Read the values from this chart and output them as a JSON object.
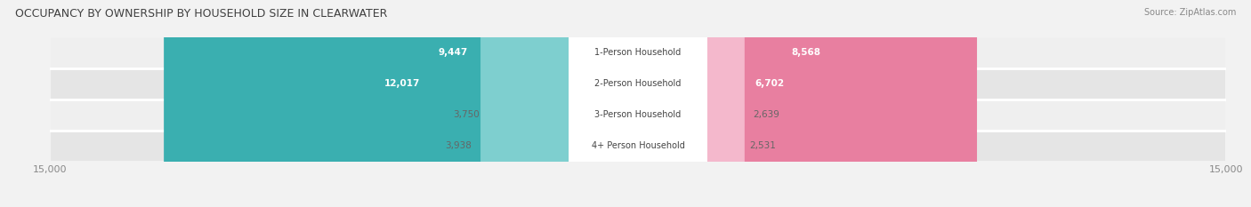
{
  "title": "OCCUPANCY BY OWNERSHIP BY HOUSEHOLD SIZE IN CLEARWATER",
  "source": "Source: ZipAtlas.com",
  "categories": [
    "1-Person Household",
    "2-Person Household",
    "3-Person Household",
    "4+ Person Household"
  ],
  "owner_values": [
    9447,
    12017,
    3750,
    3938
  ],
  "renter_values": [
    8568,
    6702,
    2639,
    2531
  ],
  "max_val": 15000,
  "owner_color_large": "#3AAFB0",
  "owner_color_small": "#7ECFCF",
  "renter_color_large": "#E87FA0",
  "renter_color_small": "#F4B8CC",
  "row_bg_odd": "#EFEFEF",
  "row_bg_even": "#E5E5E5",
  "label_bg_color": "#FFFFFF",
  "title_color": "#404040",
  "source_color": "#888888",
  "value_inside_color": "#FFFFFF",
  "value_outside_color": "#666666",
  "legend_owner_color": "#3AAFB0",
  "legend_renter_color": "#F4A8C0",
  "figsize": [
    14.06,
    2.33
  ],
  "dpi": 100,
  "owner_threshold": 5000,
  "renter_threshold": 4000
}
